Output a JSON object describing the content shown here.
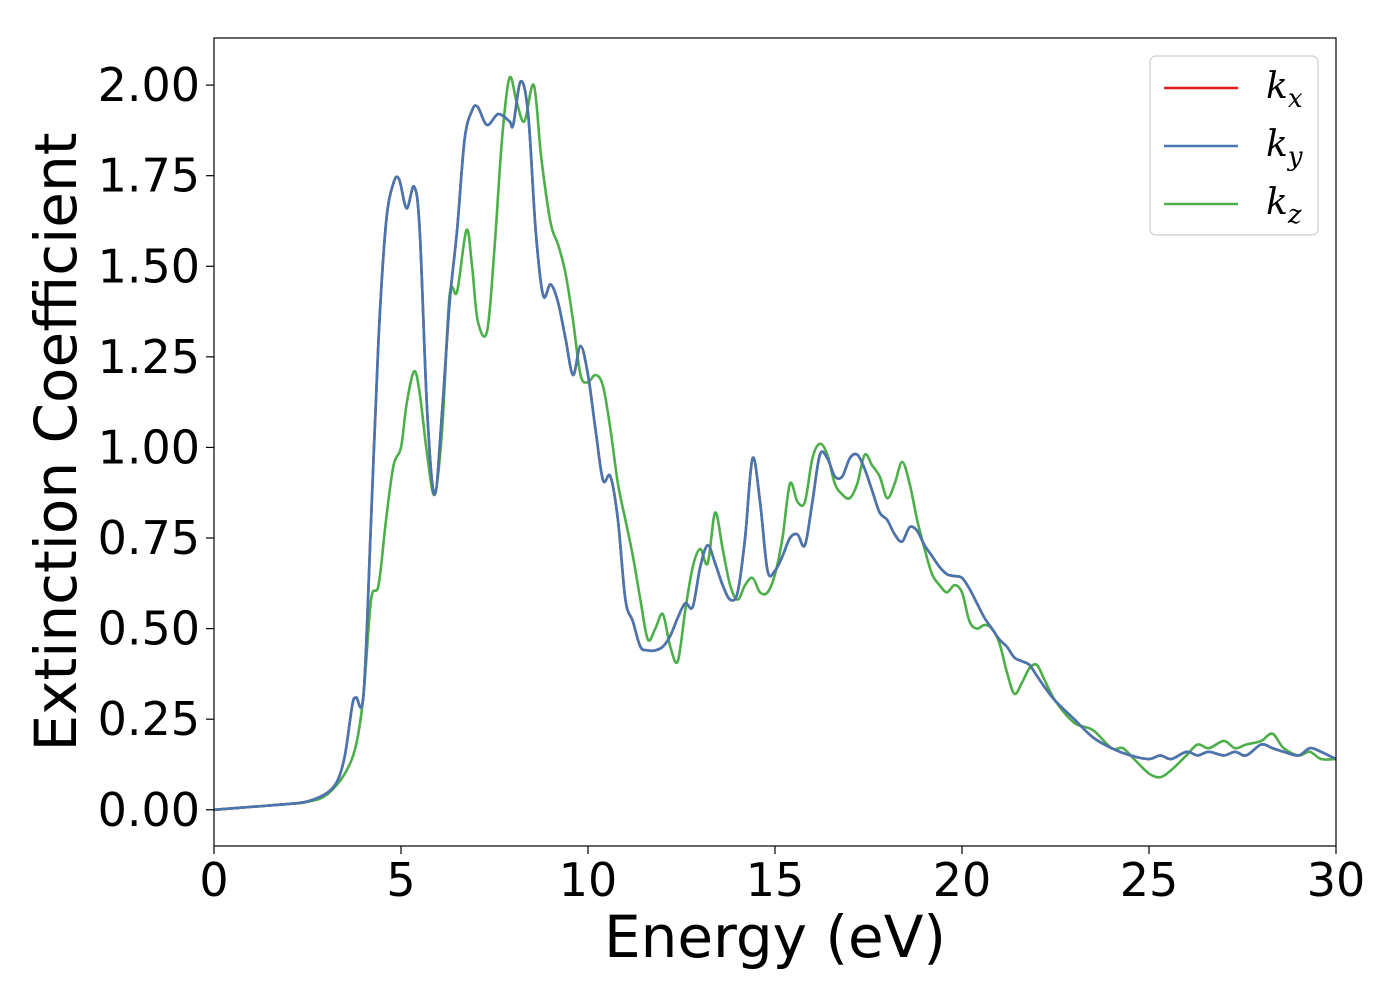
{
  "chart_data": {
    "type": "line",
    "title": "",
    "xlabel": "Energy (eV)",
    "ylabel": "Extinction Coefficient",
    "xlim": [
      0,
      30
    ],
    "ylim": [
      -0.1,
      2.13
    ],
    "xticks": [
      0,
      5,
      10,
      15,
      20,
      25,
      30
    ],
    "xtick_labels": [
      "0",
      "5",
      "10",
      "15",
      "20",
      "25",
      "30"
    ],
    "yticks": [
      0.0,
      0.25,
      0.5,
      0.75,
      1.0,
      1.25,
      1.5,
      1.75,
      2.0
    ],
    "ytick_labels": [
      "0.00",
      "0.25",
      "0.50",
      "0.75",
      "1.00",
      "1.25",
      "1.50",
      "1.75",
      "2.00"
    ],
    "grid": false,
    "legend_position": "top-right",
    "series": [
      {
        "name": "k_x",
        "legend_base": "k",
        "legend_sub": "x",
        "color": "#e41a1c",
        "x": [
          0,
          1,
          2,
          2.5,
          3,
          3.3,
          3.5,
          3.7,
          3.8,
          4.0,
          4.2,
          4.4,
          4.6,
          4.8,
          4.95,
          5.15,
          5.35,
          5.5,
          5.7,
          5.9,
          6.1,
          6.3,
          6.5,
          6.7,
          6.9,
          7.05,
          7.3,
          7.6,
          7.9,
          8.0,
          8.2,
          8.4,
          8.6,
          8.8,
          9.0,
          9.2,
          9.4,
          9.6,
          9.8,
          10.0,
          10.2,
          10.4,
          10.6,
          10.8,
          11.0,
          11.2,
          11.4,
          11.6,
          11.8,
          12.0,
          12.2,
          12.4,
          12.6,
          12.8,
          13.0,
          13.2,
          13.4,
          13.6,
          13.8,
          14.0,
          14.2,
          14.4,
          14.6,
          14.8,
          15.0,
          15.2,
          15.4,
          15.6,
          15.8,
          16.0,
          16.2,
          16.4,
          16.6,
          16.8,
          17.0,
          17.2,
          17.4,
          17.6,
          17.8,
          18.0,
          18.2,
          18.4,
          18.6,
          18.8,
          19.0,
          19.2,
          19.4,
          19.6,
          19.8,
          20.0,
          20.2,
          20.4,
          20.6,
          20.8,
          21.0,
          21.2,
          21.4,
          21.6,
          21.8,
          22.0,
          22.2,
          22.5,
          23.0,
          23.5,
          24.0,
          24.5,
          25.0,
          25.3,
          25.6,
          26.0,
          26.3,
          26.6,
          27.0,
          27.3,
          27.6,
          28.0,
          28.3,
          28.6,
          29.0,
          29.3,
          29.6,
          30.0
        ],
        "y": [
          0.0,
          0.008,
          0.016,
          0.023,
          0.045,
          0.08,
          0.15,
          0.29,
          0.31,
          0.32,
          0.8,
          1.3,
          1.62,
          1.73,
          1.74,
          1.66,
          1.72,
          1.6,
          1.1,
          0.87,
          1.1,
          1.4,
          1.6,
          1.85,
          1.93,
          1.94,
          1.89,
          1.92,
          1.9,
          1.89,
          2.01,
          1.92,
          1.6,
          1.42,
          1.45,
          1.4,
          1.3,
          1.2,
          1.28,
          1.2,
          1.05,
          0.91,
          0.92,
          0.8,
          0.58,
          0.52,
          0.45,
          0.44,
          0.44,
          0.45,
          0.48,
          0.53,
          0.57,
          0.56,
          0.67,
          0.73,
          0.68,
          0.62,
          0.58,
          0.6,
          0.75,
          0.97,
          0.85,
          0.66,
          0.66,
          0.7,
          0.75,
          0.76,
          0.73,
          0.85,
          0.98,
          0.97,
          0.92,
          0.92,
          0.97,
          0.98,
          0.94,
          0.88,
          0.82,
          0.8,
          0.76,
          0.74,
          0.78,
          0.77,
          0.73,
          0.7,
          0.67,
          0.65,
          0.645,
          0.64,
          0.61,
          0.57,
          0.53,
          0.5,
          0.47,
          0.45,
          0.42,
          0.41,
          0.4,
          0.37,
          0.34,
          0.3,
          0.25,
          0.2,
          0.17,
          0.15,
          0.14,
          0.15,
          0.14,
          0.16,
          0.15,
          0.16,
          0.15,
          0.16,
          0.15,
          0.18,
          0.17,
          0.16,
          0.15,
          0.17,
          0.16,
          0.14
        ]
      },
      {
        "name": "k_y",
        "legend_base": "k",
        "legend_sub": "y",
        "color": "#4677b0",
        "x": [
          0,
          1,
          2,
          2.5,
          3,
          3.3,
          3.5,
          3.7,
          3.8,
          4.0,
          4.2,
          4.4,
          4.6,
          4.8,
          4.95,
          5.15,
          5.35,
          5.5,
          5.7,
          5.9,
          6.1,
          6.3,
          6.5,
          6.7,
          6.9,
          7.05,
          7.3,
          7.6,
          7.9,
          8.0,
          8.2,
          8.4,
          8.6,
          8.8,
          9.0,
          9.2,
          9.4,
          9.6,
          9.8,
          10.0,
          10.2,
          10.4,
          10.6,
          10.8,
          11.0,
          11.2,
          11.4,
          11.6,
          11.8,
          12.0,
          12.2,
          12.4,
          12.6,
          12.8,
          13.0,
          13.2,
          13.4,
          13.6,
          13.8,
          14.0,
          14.2,
          14.4,
          14.6,
          14.8,
          15.0,
          15.2,
          15.4,
          15.6,
          15.8,
          16.0,
          16.2,
          16.4,
          16.6,
          16.8,
          17.0,
          17.2,
          17.4,
          17.6,
          17.8,
          18.0,
          18.2,
          18.4,
          18.6,
          18.8,
          19.0,
          19.2,
          19.4,
          19.6,
          19.8,
          20.0,
          20.2,
          20.4,
          20.6,
          20.8,
          21.0,
          21.2,
          21.4,
          21.6,
          21.8,
          22.0,
          22.2,
          22.5,
          23.0,
          23.5,
          24.0,
          24.5,
          25.0,
          25.3,
          25.6,
          26.0,
          26.3,
          26.6,
          27.0,
          27.3,
          27.6,
          28.0,
          28.3,
          28.6,
          29.0,
          29.3,
          29.6,
          30.0
        ],
        "y": [
          0.0,
          0.008,
          0.016,
          0.023,
          0.045,
          0.08,
          0.15,
          0.29,
          0.31,
          0.32,
          0.8,
          1.3,
          1.62,
          1.73,
          1.74,
          1.66,
          1.72,
          1.6,
          1.1,
          0.87,
          1.1,
          1.4,
          1.6,
          1.85,
          1.93,
          1.94,
          1.89,
          1.92,
          1.9,
          1.89,
          2.01,
          1.92,
          1.6,
          1.42,
          1.45,
          1.4,
          1.3,
          1.2,
          1.28,
          1.2,
          1.05,
          0.91,
          0.92,
          0.8,
          0.58,
          0.52,
          0.45,
          0.44,
          0.44,
          0.45,
          0.48,
          0.53,
          0.57,
          0.56,
          0.67,
          0.73,
          0.68,
          0.62,
          0.58,
          0.6,
          0.75,
          0.97,
          0.85,
          0.66,
          0.66,
          0.7,
          0.75,
          0.76,
          0.73,
          0.85,
          0.98,
          0.97,
          0.92,
          0.92,
          0.97,
          0.98,
          0.94,
          0.88,
          0.82,
          0.8,
          0.76,
          0.74,
          0.78,
          0.77,
          0.73,
          0.7,
          0.67,
          0.65,
          0.645,
          0.64,
          0.61,
          0.57,
          0.53,
          0.5,
          0.47,
          0.45,
          0.42,
          0.41,
          0.4,
          0.37,
          0.34,
          0.3,
          0.25,
          0.2,
          0.17,
          0.15,
          0.14,
          0.15,
          0.14,
          0.16,
          0.15,
          0.16,
          0.15,
          0.16,
          0.15,
          0.18,
          0.17,
          0.16,
          0.15,
          0.17,
          0.16,
          0.14
        ]
      },
      {
        "name": "k_z",
        "legend_base": "k",
        "legend_sub": "z",
        "color": "#4daf4a",
        "x": [
          0,
          1,
          2,
          2.5,
          3,
          3.5,
          3.8,
          4.0,
          4.2,
          4.4,
          4.6,
          4.8,
          5.0,
          5.15,
          5.35,
          5.5,
          5.7,
          5.9,
          6.1,
          6.3,
          6.5,
          6.75,
          6.9,
          7.05,
          7.3,
          7.5,
          7.7,
          7.9,
          8.1,
          8.3,
          8.55,
          8.75,
          9.0,
          9.2,
          9.4,
          9.6,
          9.8,
          10.0,
          10.2,
          10.4,
          10.6,
          10.8,
          11.0,
          11.2,
          11.4,
          11.6,
          11.8,
          12.0,
          12.2,
          12.4,
          12.6,
          12.8,
          13.0,
          13.2,
          13.4,
          13.6,
          13.8,
          14.0,
          14.2,
          14.4,
          14.6,
          14.8,
          15.0,
          15.2,
          15.4,
          15.6,
          15.8,
          16.0,
          16.2,
          16.4,
          16.6,
          16.8,
          17.0,
          17.2,
          17.4,
          17.6,
          17.8,
          18.0,
          18.2,
          18.4,
          18.6,
          18.8,
          19.0,
          19.2,
          19.4,
          19.6,
          19.8,
          20.0,
          20.2,
          20.4,
          20.6,
          20.8,
          21.0,
          21.2,
          21.4,
          21.6,
          21.8,
          22.0,
          22.2,
          22.5,
          23.0,
          23.5,
          24.0,
          24.3,
          24.6,
          25.0,
          25.3,
          25.6,
          26.0,
          26.3,
          26.6,
          27.0,
          27.3,
          27.6,
          28.0,
          28.3,
          28.6,
          29.0,
          29.3,
          29.6,
          30.0
        ],
        "y": [
          0.0,
          0.008,
          0.016,
          0.022,
          0.04,
          0.1,
          0.18,
          0.32,
          0.58,
          0.62,
          0.8,
          0.95,
          1.0,
          1.12,
          1.21,
          1.15,
          0.98,
          0.87,
          1.05,
          1.42,
          1.43,
          1.6,
          1.5,
          1.35,
          1.32,
          1.55,
          1.85,
          2.02,
          1.95,
          1.9,
          2.0,
          1.8,
          1.62,
          1.56,
          1.48,
          1.35,
          1.2,
          1.18,
          1.2,
          1.17,
          1.05,
          0.9,
          0.8,
          0.7,
          0.58,
          0.47,
          0.5,
          0.54,
          0.45,
          0.41,
          0.55,
          0.67,
          0.72,
          0.68,
          0.82,
          0.72,
          0.62,
          0.58,
          0.62,
          0.64,
          0.6,
          0.6,
          0.65,
          0.75,
          0.9,
          0.85,
          0.85,
          0.97,
          1.01,
          0.98,
          0.9,
          0.87,
          0.86,
          0.9,
          0.98,
          0.95,
          0.92,
          0.86,
          0.9,
          0.96,
          0.9,
          0.8,
          0.72,
          0.65,
          0.62,
          0.6,
          0.62,
          0.6,
          0.52,
          0.5,
          0.51,
          0.5,
          0.46,
          0.38,
          0.32,
          0.35,
          0.39,
          0.4,
          0.36,
          0.3,
          0.24,
          0.22,
          0.17,
          0.17,
          0.14,
          0.1,
          0.09,
          0.11,
          0.15,
          0.18,
          0.17,
          0.19,
          0.17,
          0.18,
          0.19,
          0.21,
          0.17,
          0.15,
          0.16,
          0.14,
          0.14
        ]
      }
    ]
  }
}
